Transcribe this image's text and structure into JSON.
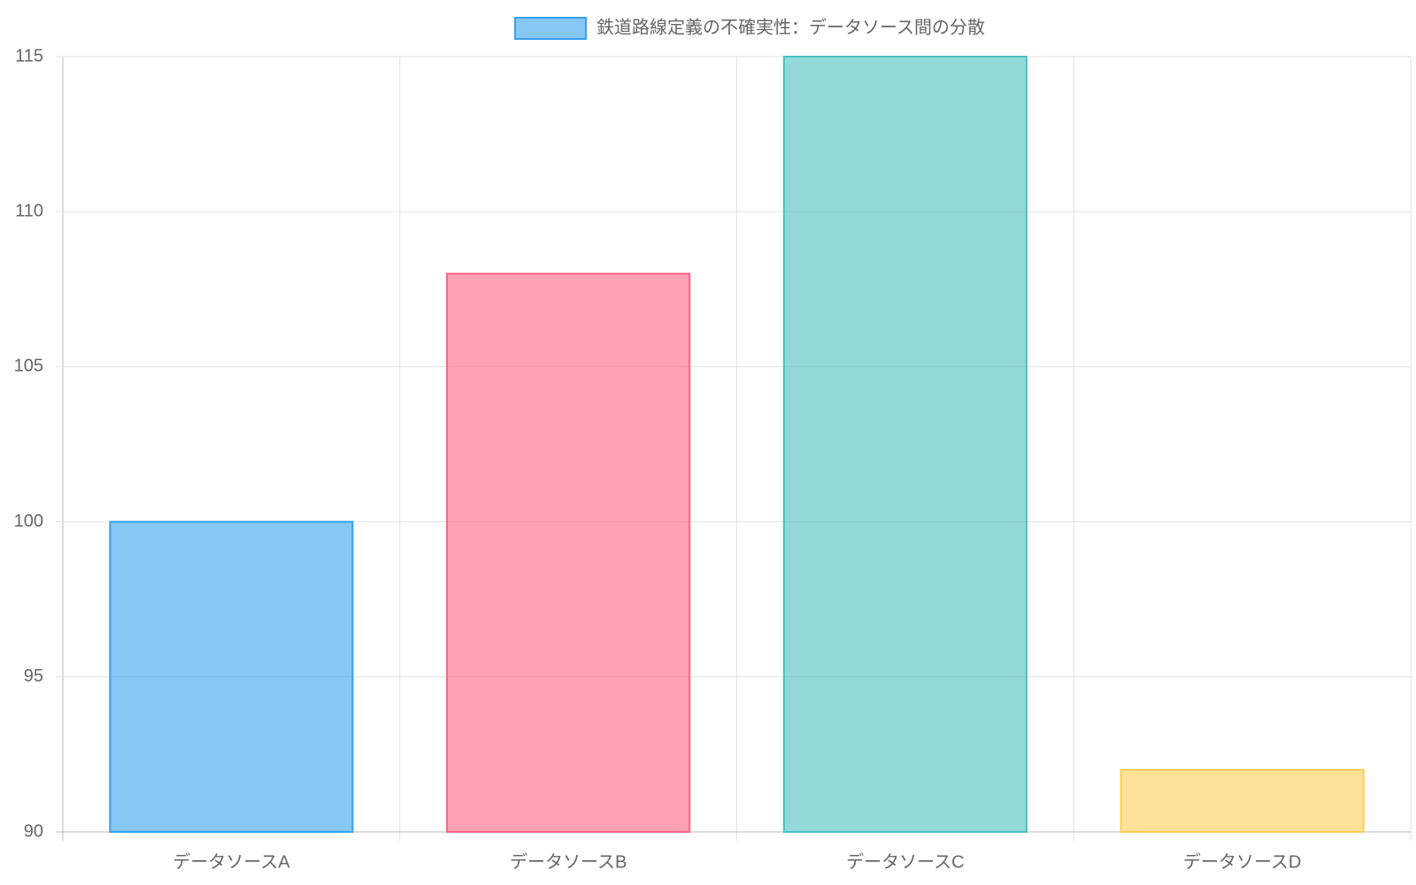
{
  "chart_data": {
    "type": "bar",
    "categories": [
      "データソースA",
      "データソースB",
      "データソースC",
      "データソースD"
    ],
    "series": [
      {
        "name": "鉄道路線定義の不確実性：データソース間の分散",
        "colors": [
          "rgba(54,162,235,0.6)",
          "rgba(255,99,132,0.6)",
          "rgba(75,192,192,0.6)",
          "rgba(255,206,86,0.6)"
        ],
        "border_colors": [
          "rgb(54,162,235)",
          "rgb(255,99,132)",
          "rgb(75,192,192)",
          "rgb(255,206,86)"
        ],
        "values": [
          100,
          108,
          115,
          92
        ]
      }
    ],
    "ylim": [
      90,
      115
    ],
    "yticks": [
      90,
      95,
      100,
      105,
      110,
      115
    ],
    "grid": true,
    "legend": "top"
  }
}
